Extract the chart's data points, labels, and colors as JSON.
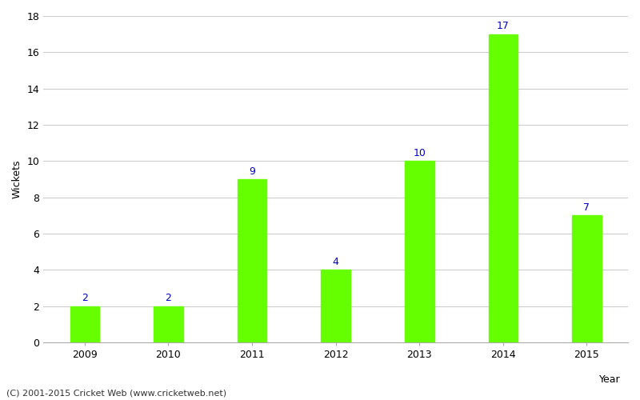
{
  "years": [
    "2009",
    "2010",
    "2011",
    "2012",
    "2013",
    "2014",
    "2015"
  ],
  "values": [
    2,
    2,
    9,
    4,
    10,
    17,
    7
  ],
  "bar_color": "#66ff00",
  "label_color": "#0000cc",
  "ylabel": "Wickets",
  "xlabel": "Year",
  "ylim": [
    0,
    18
  ],
  "yticks": [
    0,
    2,
    4,
    6,
    8,
    10,
    12,
    14,
    16,
    18
  ],
  "footnote": "(C) 2001-2015 Cricket Web (www.cricketweb.net)",
  "background_color": "#ffffff",
  "label_fontsize": 9,
  "axis_fontsize": 9,
  "footnote_fontsize": 8,
  "bar_width": 0.35,
  "grid_color": "#cccccc"
}
